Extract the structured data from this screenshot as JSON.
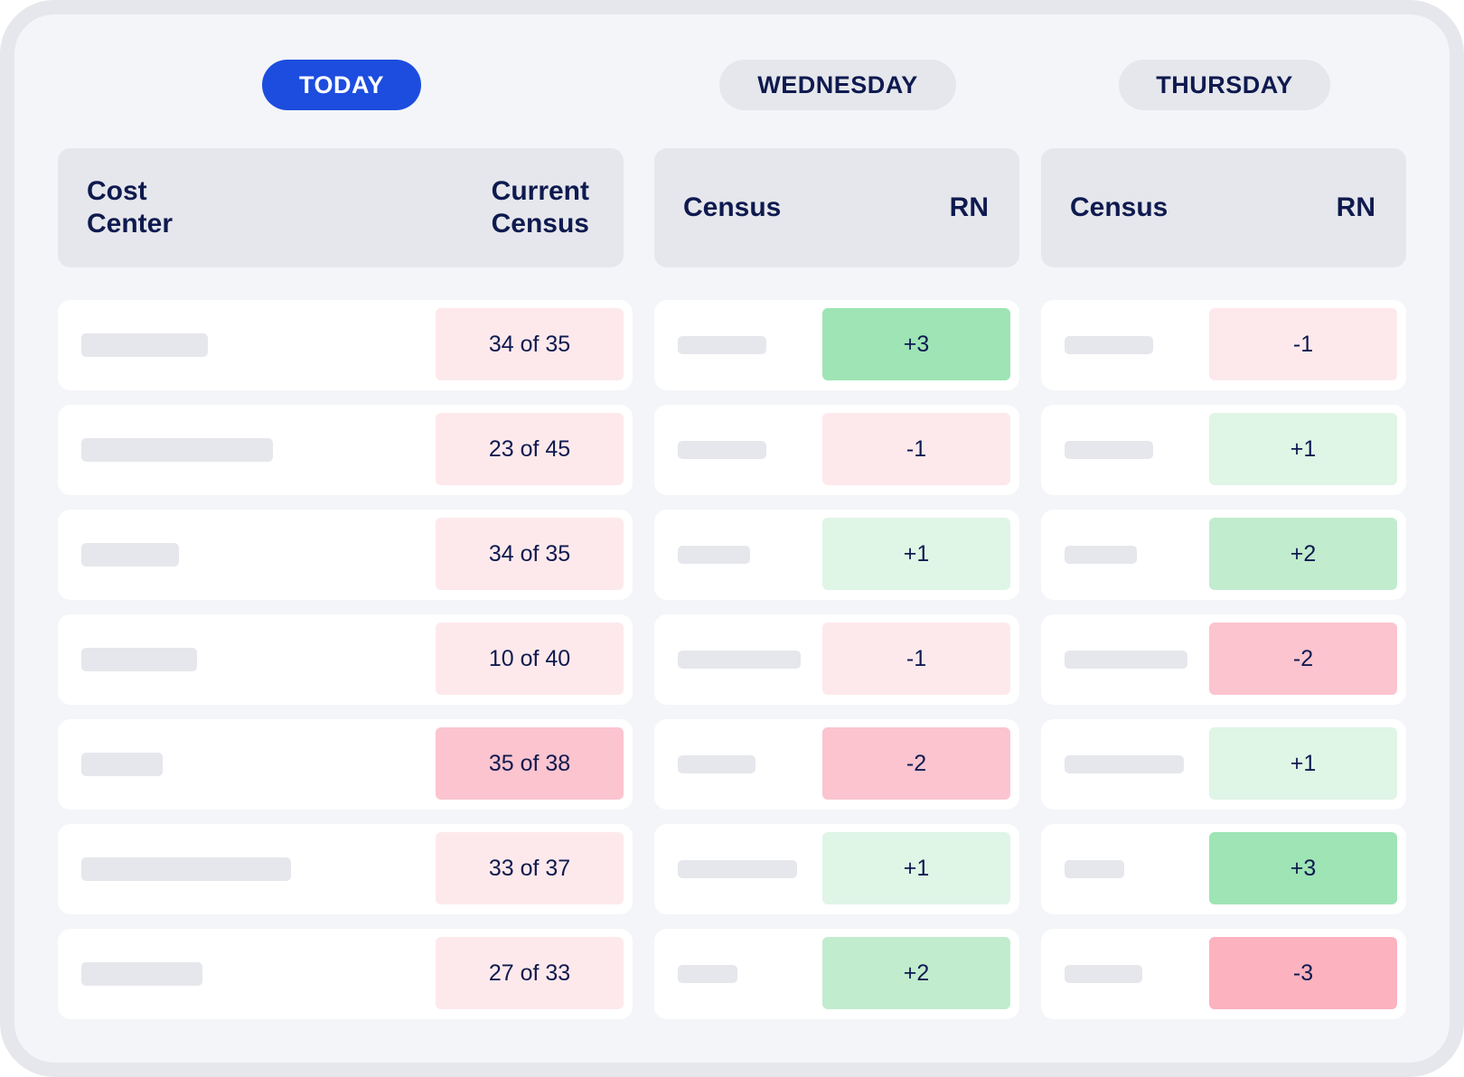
{
  "tabs": [
    {
      "label": "TODAY",
      "active": true
    },
    {
      "label": "WEDNESDAY",
      "active": false
    },
    {
      "label": "THURSDAY",
      "active": false
    }
  ],
  "today_header": {
    "col1": "Cost\nCenter",
    "col2": "Current\nCensus"
  },
  "wednesday_header": {
    "col1": "Census",
    "col2": "RN"
  },
  "thursday_header": {
    "col1": "Census",
    "col2": "RN"
  },
  "colors": {
    "pink_light": "#fde9ec",
    "pink_mid": "#fbc4cf",
    "pink_strong": "#fcb2bf",
    "green_light": "#dff5e6",
    "green_mid": "#c1ecce",
    "green_strong": "#9ee4b5"
  },
  "rows": [
    {
      "census": "34 of 35",
      "census_color": "pink_light",
      "wed_rn": "+3",
      "wed_color": "green_strong",
      "thu_rn": "-1",
      "thu_color": "pink_light"
    },
    {
      "census": "23 of 45",
      "census_color": "pink_light",
      "wed_rn": "-1",
      "wed_color": "pink_light",
      "thu_rn": "+1",
      "thu_color": "green_light"
    },
    {
      "census": "34 of 35",
      "census_color": "pink_light",
      "wed_rn": "+1",
      "wed_color": "green_light",
      "thu_rn": "+2",
      "thu_color": "green_mid"
    },
    {
      "census": "10 of 40",
      "census_color": "pink_light",
      "wed_rn": "-1",
      "wed_color": "pink_light",
      "thu_rn": "-2",
      "thu_color": "pink_mid"
    },
    {
      "census": "35 of 38",
      "census_color": "pink_mid",
      "wed_rn": "-2",
      "wed_color": "pink_mid",
      "thu_rn": "+1",
      "thu_color": "green_light"
    },
    {
      "census": "33 of 37",
      "census_color": "pink_light",
      "wed_rn": "+1",
      "wed_color": "green_light",
      "thu_rn": "+3",
      "thu_color": "green_strong"
    },
    {
      "census": "27 of 33",
      "census_color": "pink_light",
      "wed_rn": "+2",
      "wed_color": "green_mid",
      "thu_rn": "-3",
      "thu_color": "pink_strong"
    }
  ]
}
